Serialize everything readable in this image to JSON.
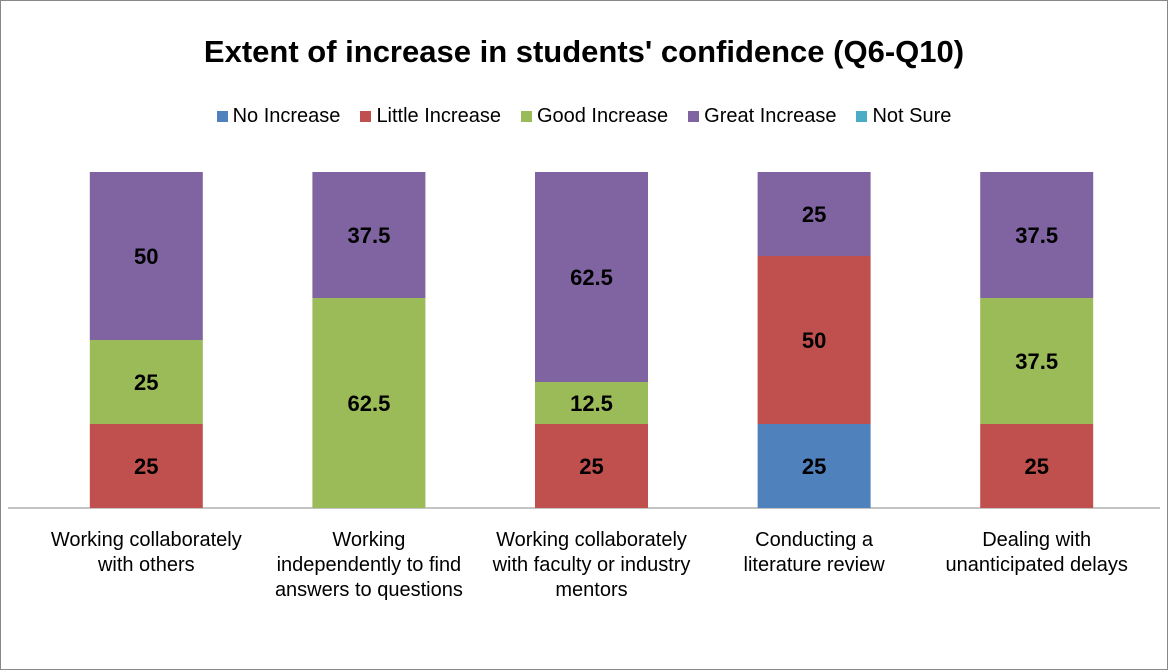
{
  "chart_data": {
    "type": "stacked_bar",
    "title": "Extent of increase in students' confidence (Q6-Q10)",
    "categories": [
      "Working collaborately with others",
      "Working independently to find answers to questions",
      "Working collaborately with faculty or industry mentors",
      "Conducting a literature review",
      "Dealing with unanticipated delays"
    ],
    "series": [
      {
        "name": "No Increase",
        "color": "#4f81bd",
        "values": [
          0,
          0,
          0,
          25,
          0
        ]
      },
      {
        "name": "Little Increase",
        "color": "#c0504d",
        "values": [
          25,
          0,
          25,
          50,
          25
        ]
      },
      {
        "name": "Good Increase",
        "color": "#9bbb59",
        "values": [
          25,
          62.5,
          12.5,
          0,
          37.5
        ]
      },
      {
        "name": "Great Increase",
        "color": "#8064a2",
        "values": [
          50,
          37.5,
          62.5,
          25,
          37.5
        ]
      },
      {
        "name": "Not Sure",
        "color": "#4bacc6",
        "values": [
          0,
          0,
          0,
          0,
          0
        ]
      }
    ],
    "ylim": [
      0,
      100
    ]
  }
}
